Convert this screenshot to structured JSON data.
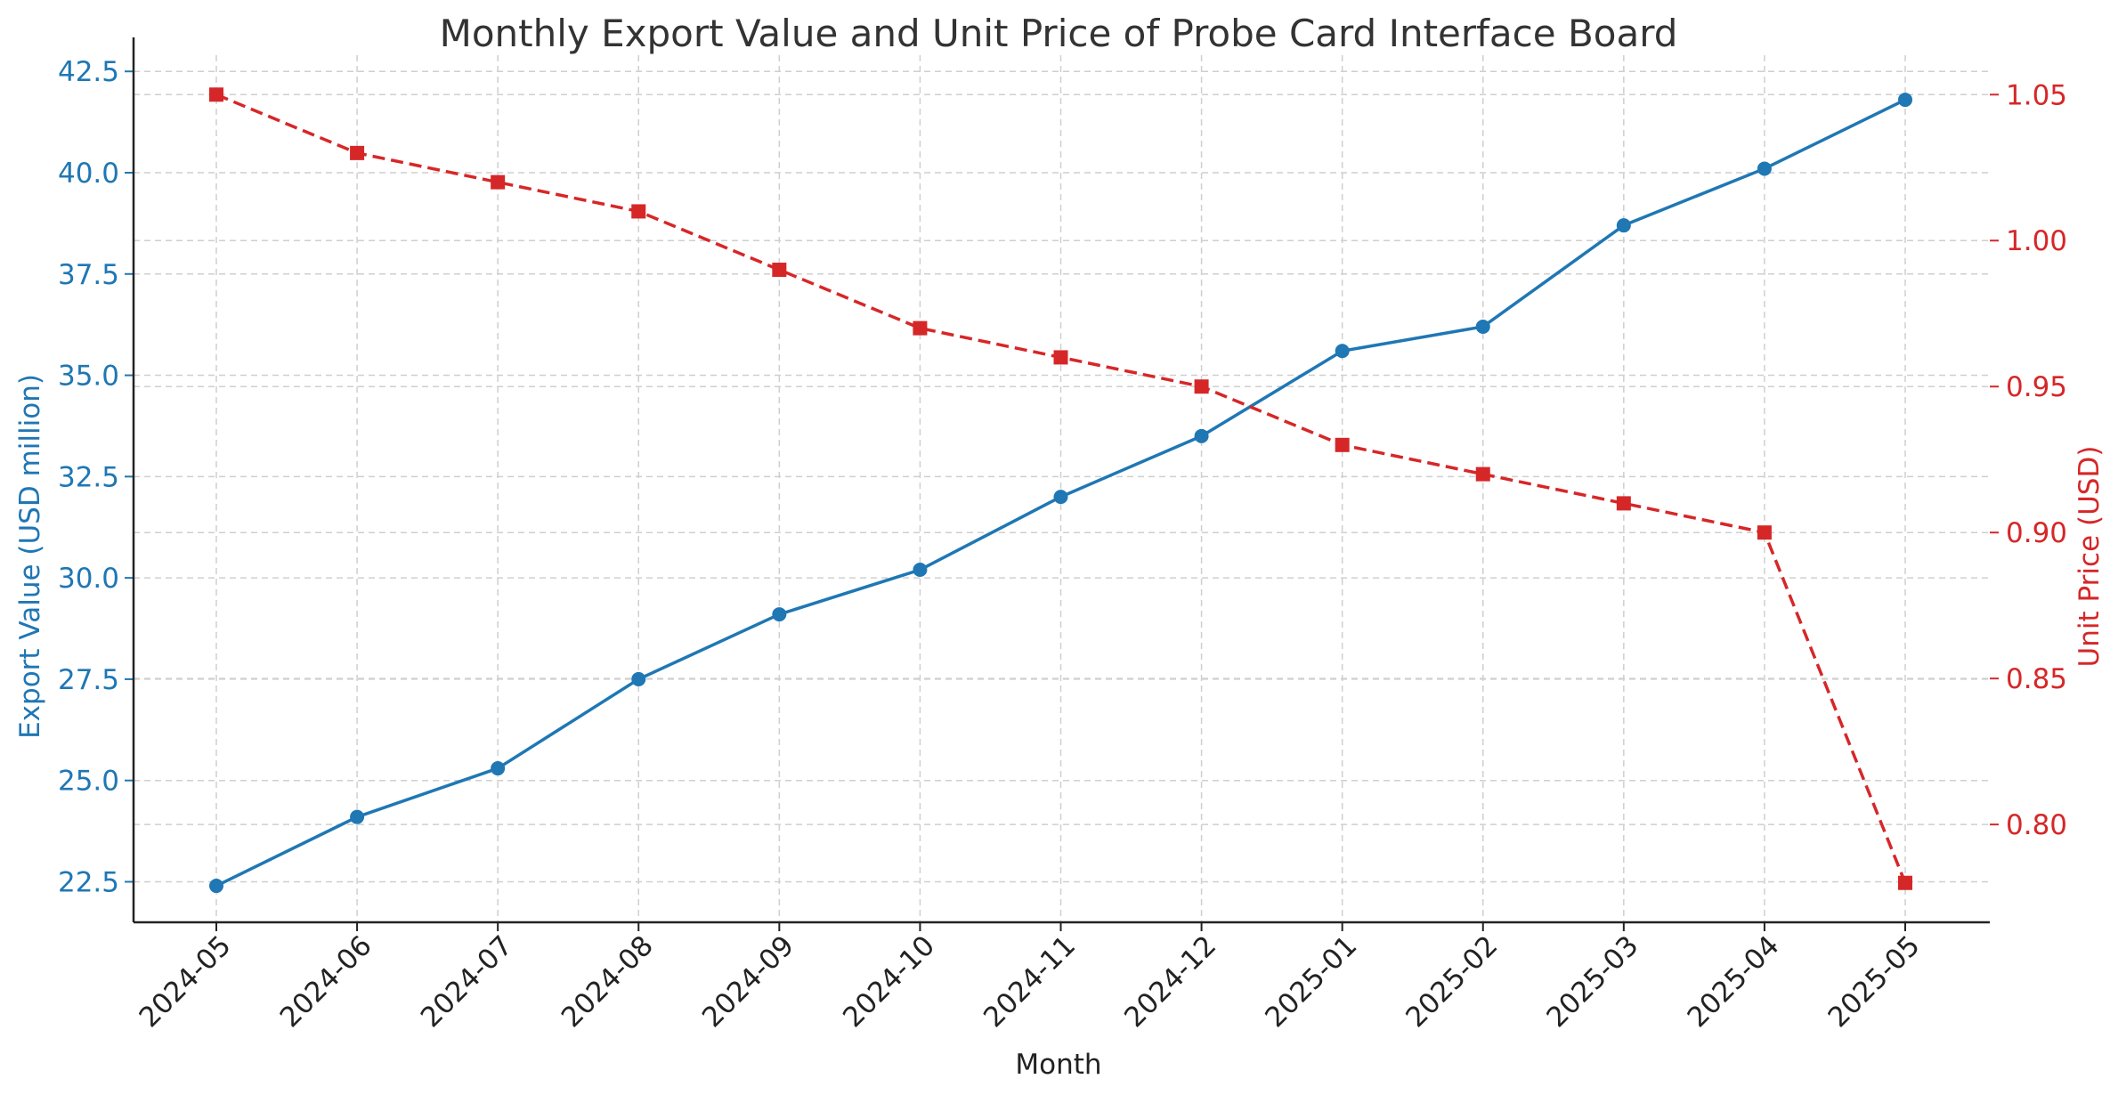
{
  "chart_data": {
    "type": "line",
    "title": "Monthly Export Value and Unit Price of Probe Card Interface Board",
    "xlabel": "Month",
    "categories": [
      "2024-05",
      "2024-06",
      "2024-07",
      "2024-08",
      "2024-09",
      "2024-10",
      "2024-11",
      "2024-12",
      "2025-01",
      "2025-02",
      "2025-03",
      "2025-04",
      "2025-05"
    ],
    "y_left": {
      "label": "Export Value (USD million)",
      "color": "#1f77b4",
      "ylim": [
        21.5,
        42.9
      ],
      "ticks": [
        "22.5",
        "25.0",
        "27.5",
        "30.0",
        "32.5",
        "35.0",
        "37.5",
        "40.0",
        "42.5"
      ]
    },
    "y_right": {
      "label": "Unit Price (USD)",
      "color": "#d62728",
      "ylim": [
        0.7665,
        1.0635
      ],
      "ticks": [
        "0.80",
        "0.85",
        "0.90",
        "0.95",
        "1.00",
        "1.05"
      ]
    },
    "grid": true,
    "series": [
      {
        "axis": "left",
        "color": "#1f77b4",
        "line_style": "solid",
        "marker": "circle",
        "values": [
          22.4,
          24.1,
          25.3,
          27.5,
          29.1,
          30.2,
          32.0,
          33.5,
          35.6,
          36.2,
          38.7,
          40.1,
          41.8
        ]
      },
      {
        "axis": "right",
        "color": "#d62728",
        "line_style": "dashed",
        "marker": "square",
        "values": [
          1.05,
          1.03,
          1.02,
          1.01,
          0.99,
          0.97,
          0.96,
          0.95,
          0.93,
          0.92,
          0.91,
          0.9,
          0.78
        ]
      }
    ]
  }
}
